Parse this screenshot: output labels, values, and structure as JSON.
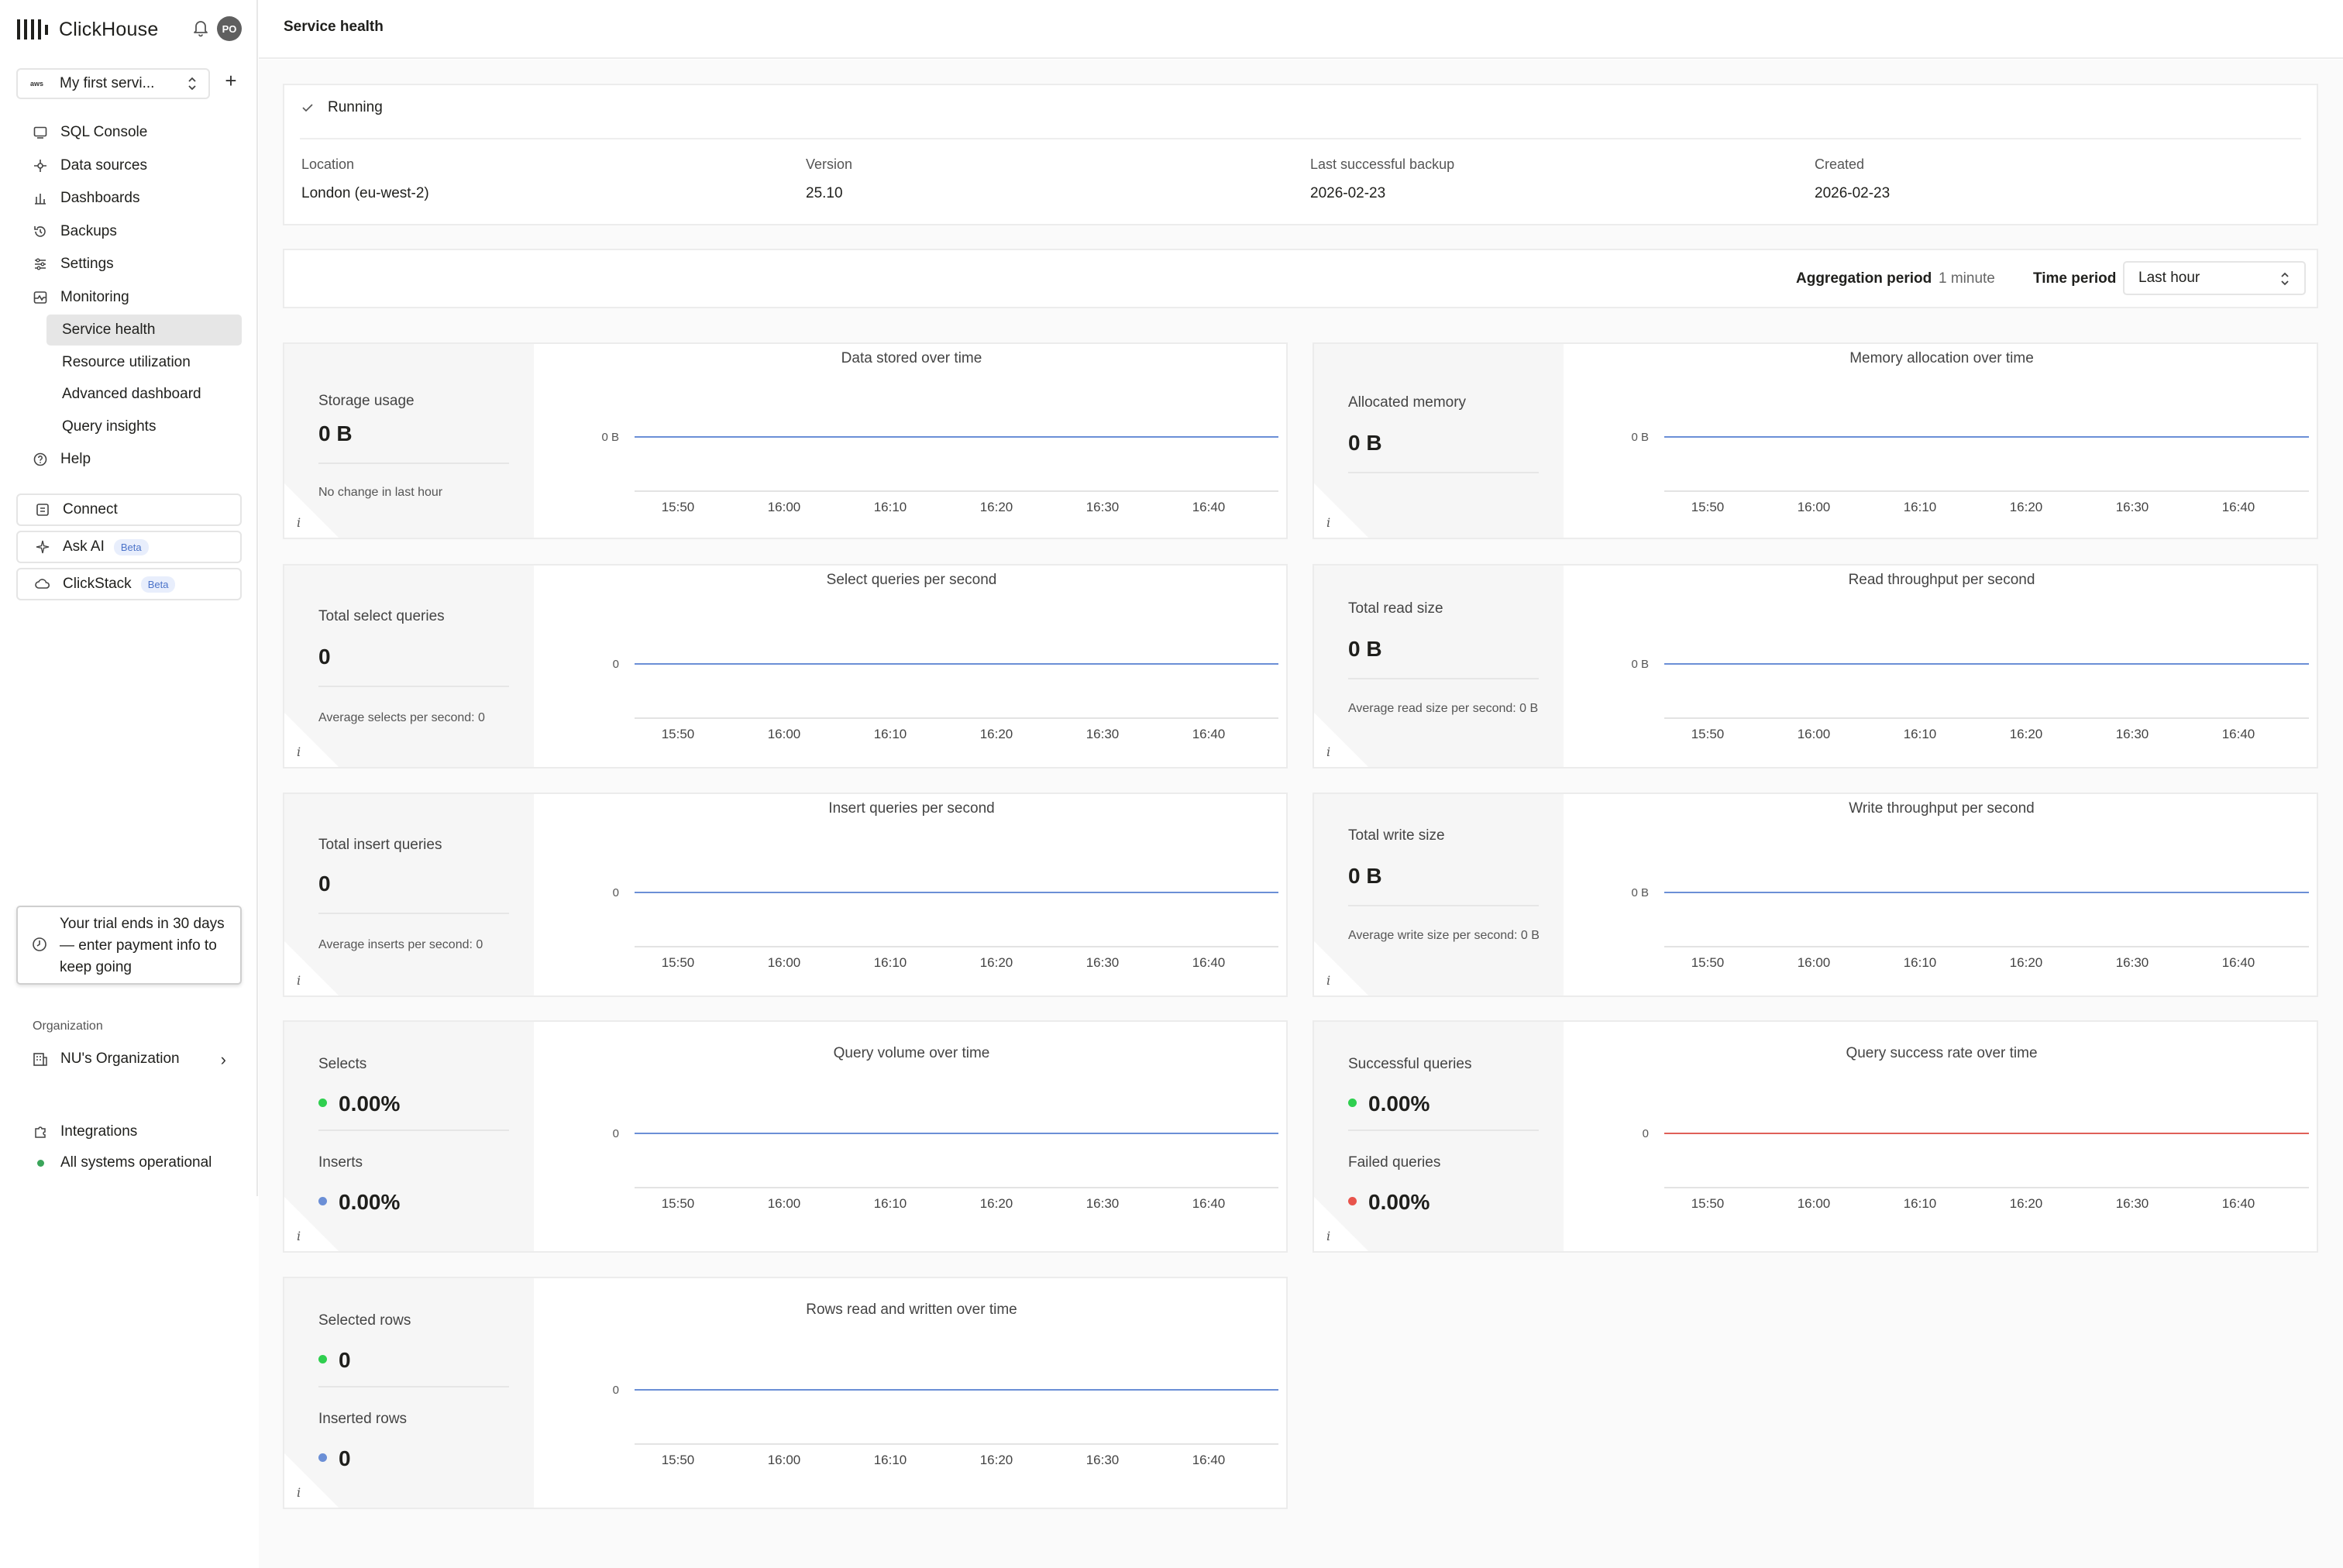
{
  "app": {
    "name": "ClickHouse",
    "avatar_initials": "PO"
  },
  "service": {
    "name": "My first servi...",
    "provider": "aws"
  },
  "nav": {
    "items": [
      {
        "label": "SQL Console",
        "icon": "console-icon"
      },
      {
        "label": "Data sources",
        "icon": "data-sources-icon"
      },
      {
        "label": "Dashboards",
        "icon": "dashboard-icon"
      },
      {
        "label": "Backups",
        "icon": "backup-icon"
      },
      {
        "label": "Settings",
        "icon": "sliders-icon"
      },
      {
        "label": "Monitoring",
        "icon": "monitoring-icon"
      }
    ],
    "monitoring_sub": [
      {
        "label": "Service health",
        "active": true
      },
      {
        "label": "Resource utilization",
        "active": false
      },
      {
        "label": "Advanced dashboard",
        "active": false
      },
      {
        "label": "Query insights",
        "active": false
      }
    ],
    "help": "Help"
  },
  "bottom_buttons": {
    "connect": "Connect",
    "ask_ai": "Ask AI",
    "ask_ai_badge": "Beta",
    "clickstack": "ClickStack",
    "clickstack_badge": "Beta"
  },
  "trial": {
    "text": "Your trial ends in 30 days — enter payment info to keep going"
  },
  "org": {
    "section_label": "Organization",
    "name": "NU's Organization"
  },
  "footer": {
    "integrations": "Integrations",
    "status": "All systems operational"
  },
  "page": {
    "title": "Service health"
  },
  "status": {
    "state": "Running",
    "location_label": "Location",
    "location": "London (eu-west-2)",
    "version_label": "Version",
    "version": "25.10",
    "backup_label": "Last successful backup",
    "backup": "2026-02-23",
    "created_label": "Created",
    "created": "2026-02-23"
  },
  "controls": {
    "aggregation_label": "Aggregation period",
    "aggregation_value": "1 minute",
    "time_label": "Time period",
    "time_value": "Last hour"
  },
  "colors": {
    "blue_series": "#6b8fd6",
    "red_series": "#e06058",
    "green_dot": "#2fcf4f",
    "blue_dot": "#6b8fd6",
    "red_dot": "#e8544c"
  },
  "cards": [
    {
      "metrics": [
        {
          "label": "Storage usage",
          "value": "0 B"
        }
      ],
      "note": "No change in last hour"
    },
    {
      "metrics": [
        {
          "label": "Allocated memory",
          "value": "0 B"
        }
      ],
      "note": ""
    },
    {
      "metrics": [
        {
          "label": "Total select queries",
          "value": "0"
        }
      ],
      "note": "Average selects per second: 0"
    },
    {
      "metrics": [
        {
          "label": "Total read size",
          "value": "0 B"
        }
      ],
      "note": "Average read size per second: 0 B"
    },
    {
      "metrics": [
        {
          "label": "Total insert queries",
          "value": "0"
        }
      ],
      "note": "Average inserts per second: 0"
    },
    {
      "metrics": [
        {
          "label": "Total write size",
          "value": "0 B"
        }
      ],
      "note": "Average write size per second: 0 B"
    },
    {
      "metrics": [
        {
          "label": "Selects",
          "value": "0.00%",
          "dot": "green"
        },
        {
          "label": "Inserts",
          "value": "0.00%",
          "dot": "blue"
        }
      ],
      "note": ""
    },
    {
      "metrics": [
        {
          "label": "Successful queries",
          "value": "0.00%",
          "dot": "green"
        },
        {
          "label": "Failed queries",
          "value": "0.00%",
          "dot": "red"
        }
      ],
      "note": ""
    },
    {
      "metrics": [
        {
          "label": "Selected rows",
          "value": "0",
          "dot": "green"
        },
        {
          "label": "Inserted rows",
          "value": "0",
          "dot": "blue"
        }
      ],
      "note": ""
    }
  ],
  "chart_data": [
    {
      "type": "line",
      "title": "Data stored over time",
      "x": [
        "15:50",
        "16:00",
        "16:10",
        "16:20",
        "16:30",
        "16:40"
      ],
      "y_tick": "0 B",
      "series": [
        {
          "color": "blue",
          "values": [
            0,
            0,
            0,
            0,
            0,
            0
          ]
        }
      ]
    },
    {
      "type": "line",
      "title": "Memory allocation over time",
      "x": [
        "15:50",
        "16:00",
        "16:10",
        "16:20",
        "16:30",
        "16:40"
      ],
      "y_tick": "0 B",
      "series": [
        {
          "color": "blue",
          "values": [
            0,
            0,
            0,
            0,
            0,
            0
          ]
        }
      ]
    },
    {
      "type": "line",
      "title": "Select queries per second",
      "x": [
        "15:50",
        "16:00",
        "16:10",
        "16:20",
        "16:30",
        "16:40"
      ],
      "y_tick": "0",
      "series": [
        {
          "color": "blue",
          "values": [
            0,
            0,
            0,
            0,
            0,
            0
          ]
        }
      ]
    },
    {
      "type": "line",
      "title": "Read throughput per second",
      "x": [
        "15:50",
        "16:00",
        "16:10",
        "16:20",
        "16:30",
        "16:40"
      ],
      "y_tick": "0 B",
      "series": [
        {
          "color": "blue",
          "values": [
            0,
            0,
            0,
            0,
            0,
            0
          ]
        }
      ]
    },
    {
      "type": "line",
      "title": "Insert queries per second",
      "x": [
        "15:50",
        "16:00",
        "16:10",
        "16:20",
        "16:30",
        "16:40"
      ],
      "y_tick": "0",
      "series": [
        {
          "color": "blue",
          "values": [
            0,
            0,
            0,
            0,
            0,
            0
          ]
        }
      ]
    },
    {
      "type": "line",
      "title": "Write throughput per second",
      "x": [
        "15:50",
        "16:00",
        "16:10",
        "16:20",
        "16:30",
        "16:40"
      ],
      "y_tick": "0 B",
      "series": [
        {
          "color": "blue",
          "values": [
            0,
            0,
            0,
            0,
            0,
            0
          ]
        }
      ]
    },
    {
      "type": "line",
      "title": "Query volume over time",
      "x": [
        "15:50",
        "16:00",
        "16:10",
        "16:20",
        "16:30",
        "16:40"
      ],
      "y_tick": "0",
      "series": [
        {
          "color": "blue",
          "values": [
            0,
            0,
            0,
            0,
            0,
            0
          ]
        }
      ]
    },
    {
      "type": "line",
      "title": "Query success rate over time",
      "x": [
        "15:50",
        "16:00",
        "16:10",
        "16:20",
        "16:30",
        "16:40"
      ],
      "y_tick": "0",
      "series": [
        {
          "color": "red",
          "values": [
            0,
            0,
            0,
            0,
            0,
            0
          ]
        }
      ]
    },
    {
      "type": "line",
      "title": "Rows read and written over time",
      "x": [
        "15:50",
        "16:00",
        "16:10",
        "16:20",
        "16:30",
        "16:40"
      ],
      "y_tick": "0",
      "series": [
        {
          "color": "blue",
          "values": [
            0,
            0,
            0,
            0,
            0,
            0
          ]
        }
      ]
    }
  ]
}
